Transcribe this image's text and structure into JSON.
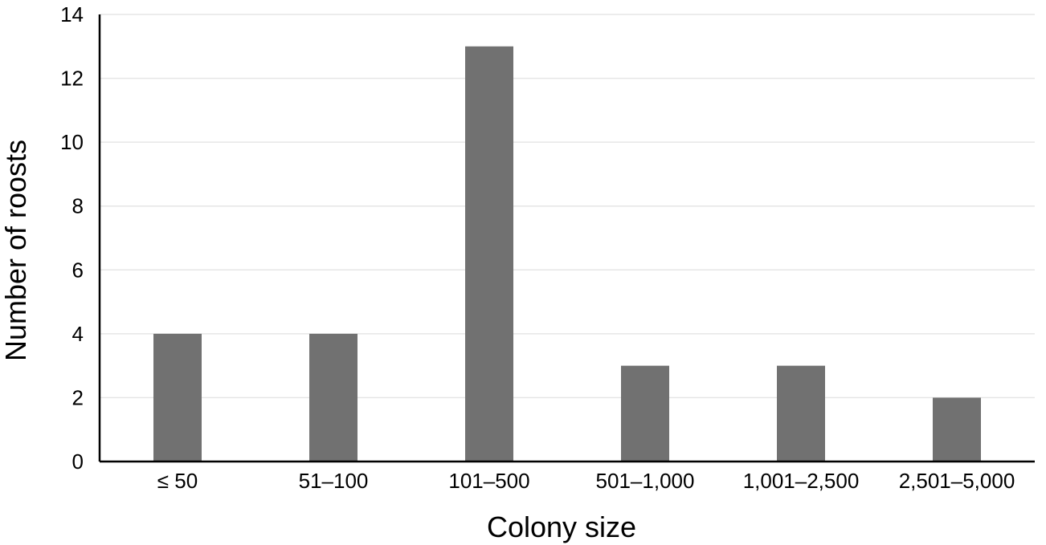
{
  "chart_data": {
    "type": "bar",
    "title": "",
    "xlabel": "Colony size",
    "ylabel": "Number of roosts",
    "categories": [
      "≤ 50",
      "51–100",
      "101–500",
      "501–1,000",
      "1,001–2,500",
      "2,501–5,000"
    ],
    "values": [
      4,
      4,
      13,
      3,
      3,
      2
    ],
    "ylim": [
      0,
      14
    ],
    "yticks": [
      "0",
      "2",
      "4",
      "6",
      "8",
      "10",
      "12",
      "14"
    ],
    "grid": true,
    "legend": "none",
    "bar_color": "#717171"
  }
}
